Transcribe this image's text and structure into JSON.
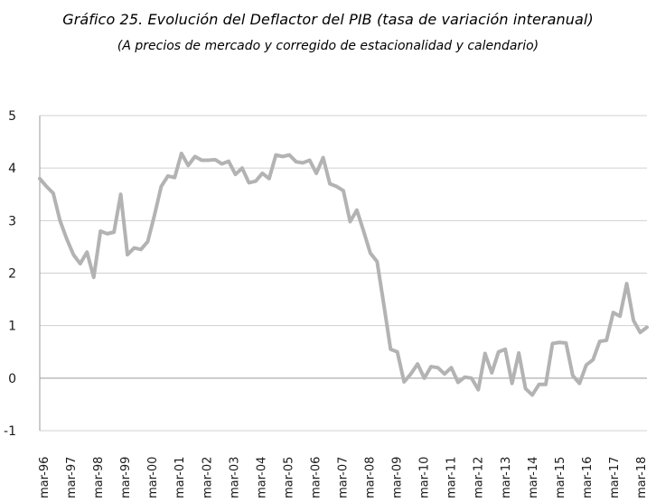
{
  "chart_data": {
    "type": "line",
    "title": "Gráfico 25. Evolución del Deflactor del PIB (tasa de variación interanual)",
    "subtitle": "(A precios de mercado y corregido de estacionalidad y calendario)",
    "xlabel": "",
    "ylabel": "",
    "ylim": [
      -1,
      5
    ],
    "yticks": [
      -1,
      0,
      1,
      2,
      3,
      4,
      5
    ],
    "grid": true,
    "legend": "none",
    "line_color": "#b3b3b3",
    "x_tick_labels": [
      "mar-96",
      "mar-97",
      "mar-98",
      "mar-99",
      "mar-00",
      "mar-01",
      "mar-02",
      "mar-03",
      "mar-04",
      "mar-05",
      "mar-06",
      "mar-07",
      "mar-08",
      "mar-09",
      "mar-10",
      "mar-11",
      "mar-12",
      "mar-13",
      "mar-14",
      "mar-15",
      "mar-16",
      "mar-17",
      "mar-18"
    ],
    "series": [
      {
        "values": [
          3.8,
          3.65,
          3.52,
          3.0,
          2.65,
          2.35,
          2.18,
          2.4,
          1.92,
          2.8,
          2.75,
          2.78,
          3.5,
          2.35,
          2.48,
          2.45,
          2.6,
          3.1,
          3.65,
          3.85,
          3.82,
          4.28,
          4.05,
          4.22,
          4.15,
          4.15,
          4.16,
          4.08,
          4.13,
          3.88,
          4.0,
          3.72,
          3.75,
          3.9,
          3.8,
          4.25,
          4.22,
          4.25,
          4.12,
          4.1,
          4.15,
          3.9,
          4.2,
          3.7,
          3.65,
          3.57,
          2.98,
          3.2,
          2.8,
          2.38,
          2.22,
          1.4,
          0.55,
          0.5,
          -0.07,
          0.08,
          0.27,
          0.0,
          0.22,
          0.2,
          0.08,
          0.2,
          -0.08,
          0.02,
          0.0,
          -0.22,
          0.47,
          0.1,
          0.5,
          0.55,
          -0.1,
          0.48,
          -0.2,
          -0.32,
          -0.12,
          -0.12,
          0.66,
          0.68,
          0.67,
          0.05,
          -0.1,
          0.25,
          0.35,
          0.7,
          0.72,
          1.25,
          1.18,
          1.8,
          1.1,
          0.87,
          0.97
        ]
      }
    ]
  }
}
